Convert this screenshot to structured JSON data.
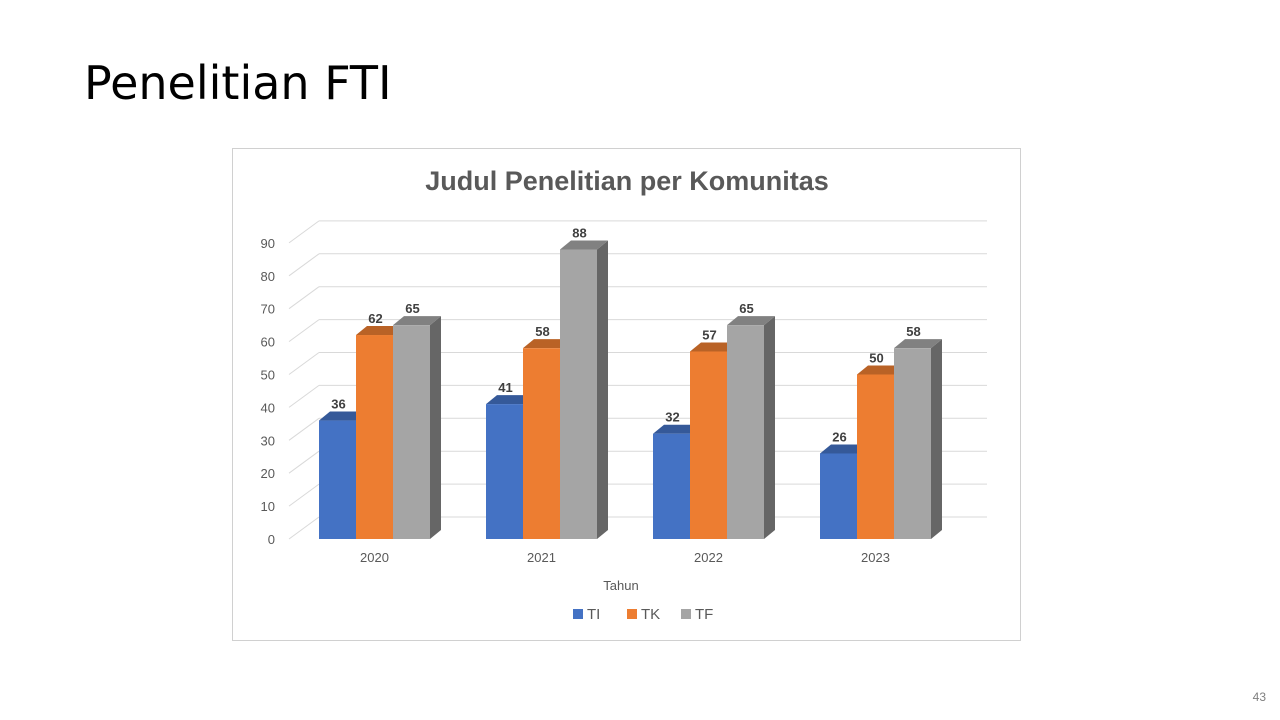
{
  "slide": {
    "title": "Penelitian FTI",
    "page_number": "43"
  },
  "chart_data": {
    "type": "bar",
    "title": "Judul Penelitian per Komunitas",
    "xlabel": "Tahun",
    "ylabel": "",
    "categories": [
      "2020",
      "2021",
      "2022",
      "2023"
    ],
    "series": [
      {
        "name": "TI",
        "values": [
          36,
          41,
          32,
          26
        ],
        "color": "#4472c4"
      },
      {
        "name": "TK",
        "values": [
          62,
          58,
          57,
          50
        ],
        "color": "#ed7d31"
      },
      {
        "name": "TF",
        "values": [
          65,
          88,
          65,
          58
        ],
        "color": "#a5a5a5"
      }
    ],
    "ylim": [
      0,
      90
    ],
    "yticks": [
      0,
      10,
      20,
      30,
      40,
      50,
      60,
      70,
      80,
      90
    ],
    "data_labels": true,
    "grid": true,
    "legend": "bottom",
    "style": "3d-column"
  }
}
